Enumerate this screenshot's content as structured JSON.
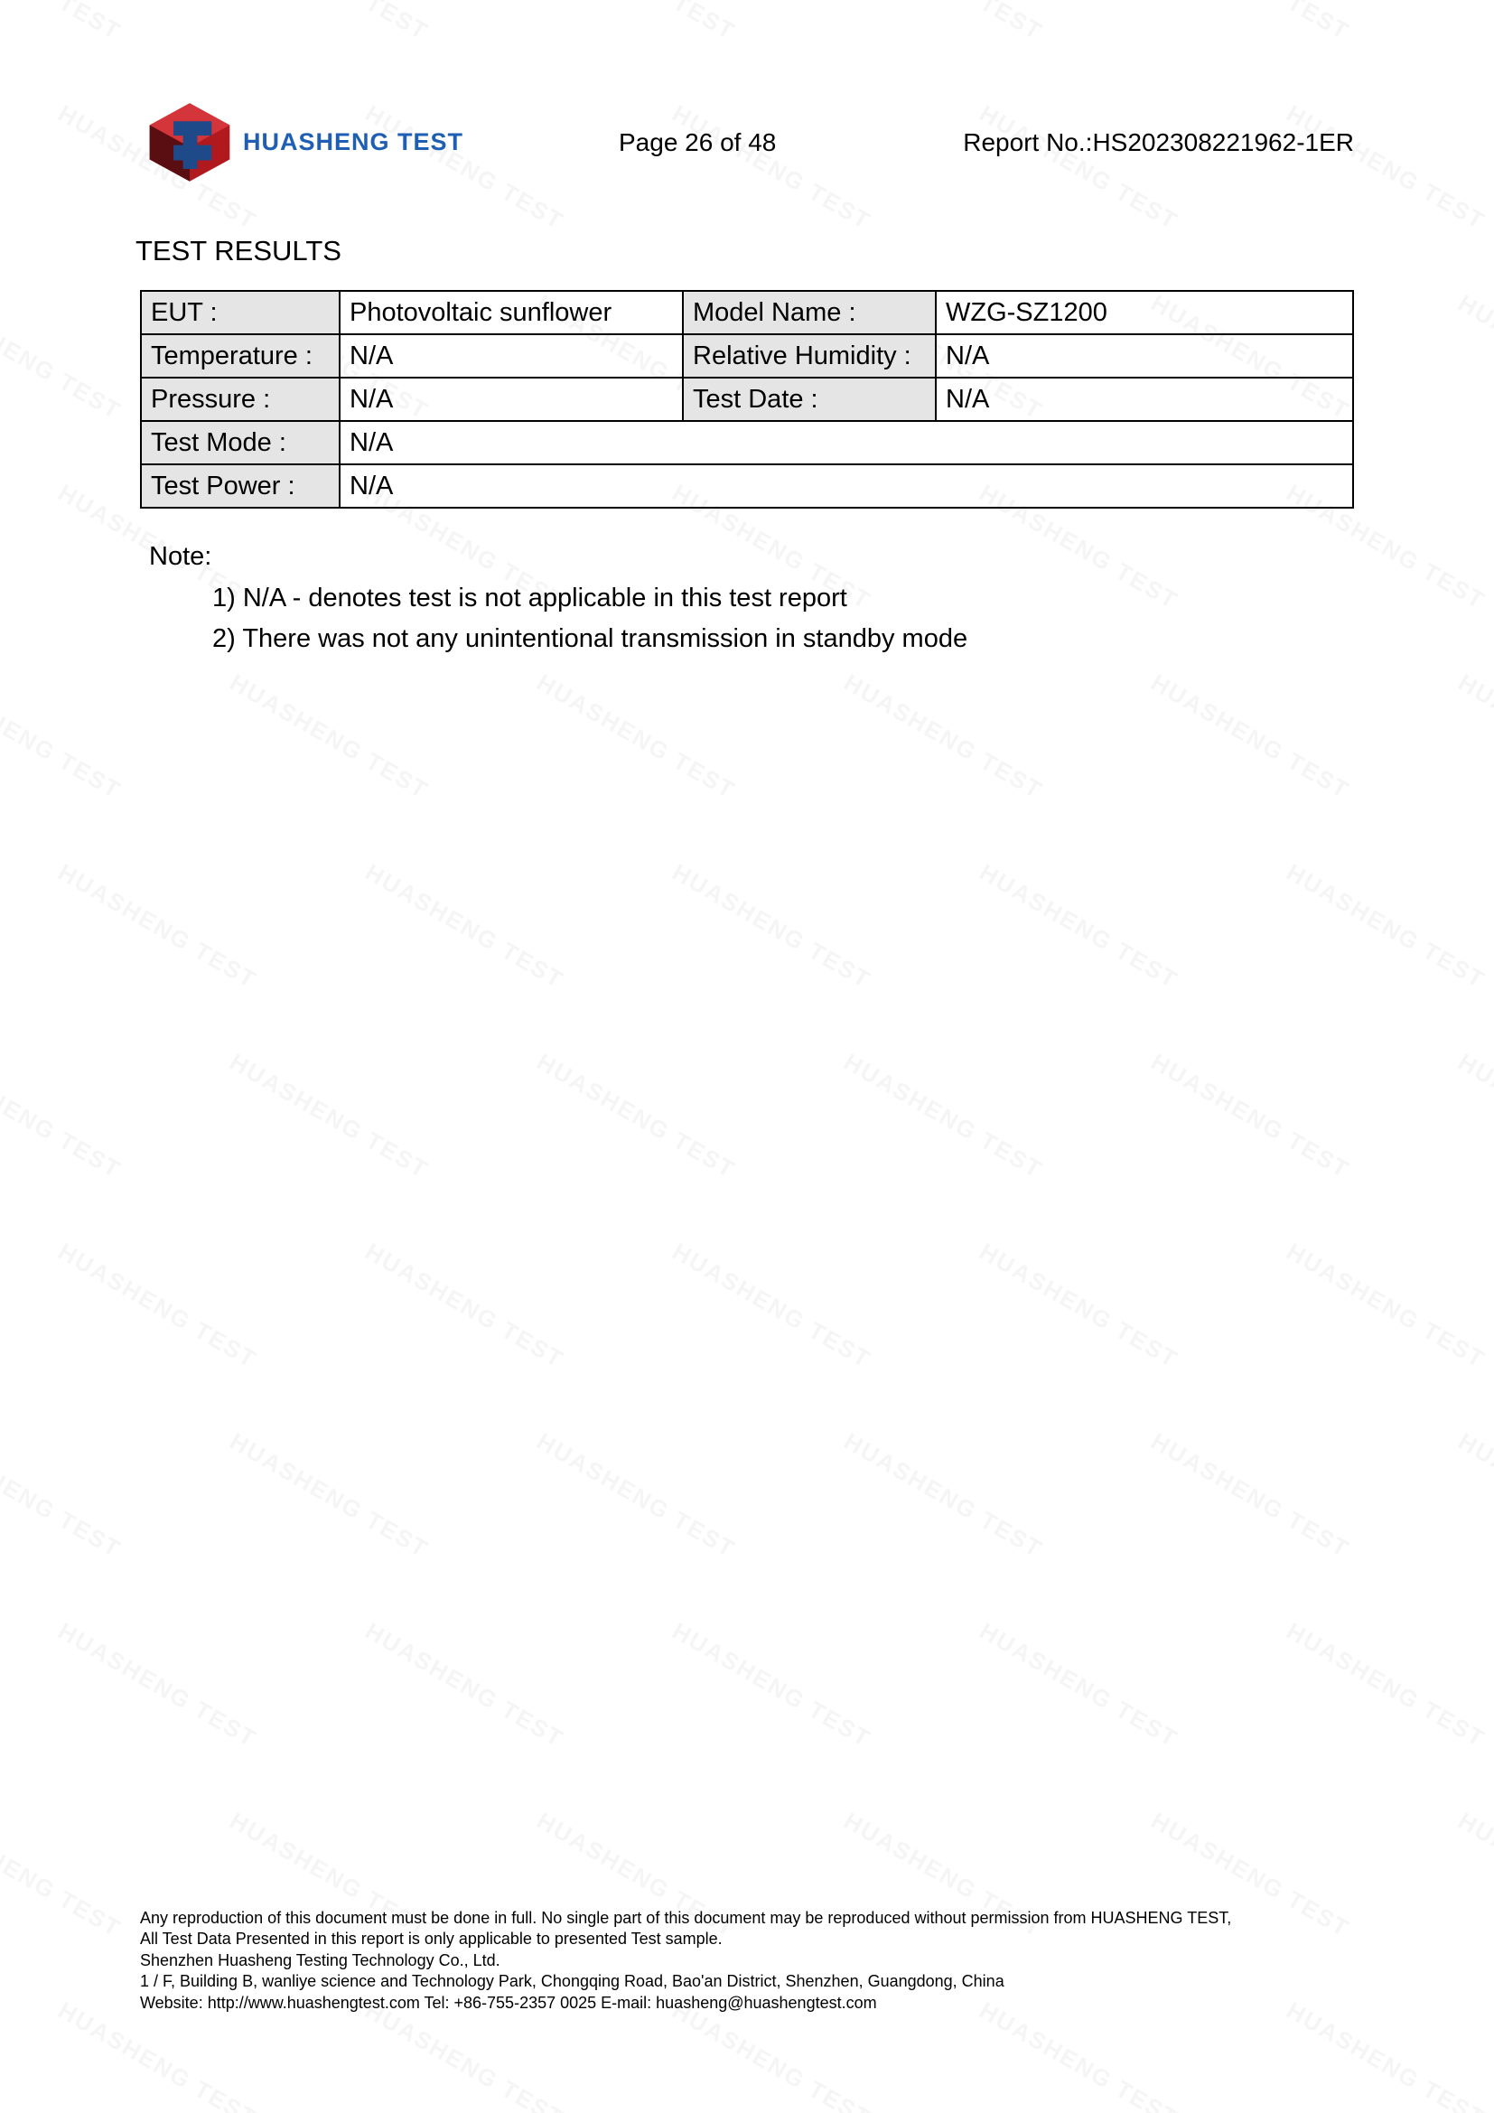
{
  "header": {
    "company_name": "HUASHENG TEST",
    "page_label": "Page 26 of 48",
    "report_no": "Report No.:HS202308221962-1ER",
    "logo_colors": {
      "cube_red": "#b01a1f",
      "cube_blue": "#1e4a8a",
      "cube_dark": "#5a0e12"
    }
  },
  "section_title": "TEST RESULTS",
  "table": {
    "rows": [
      {
        "label1": "EUT :",
        "value1": "Photovoltaic sunflower",
        "label2": "Model Name   :",
        "value2": "WZG-SZ1200"
      },
      {
        "label1": "Temperature :",
        "value1": "N/A",
        "label2": "Relative Humidity :",
        "value2": "N/A"
      },
      {
        "label1": "Pressure :",
        "value1": "N/A",
        "label2": "Test Date :",
        "value2": "N/A"
      },
      {
        "label1": "Test Mode    :",
        "value1": "N/A",
        "span": true
      },
      {
        "label1": "Test Power    :",
        "value1": "N/A",
        "span": true
      }
    ],
    "label_bg": "#e5e5e5",
    "border_color": "#000000",
    "font_size": 29
  },
  "notes": {
    "label": "Note:",
    "items": [
      "1) N/A - denotes test is not applicable in this test report",
      "2) There was not any unintentional transmission in standby mode"
    ]
  },
  "footer": {
    "line1": "Any reproduction of this document must be done in full. No single part of this document may be reproduced without permission from HUASHENG TEST,",
    "line2": "All Test Data Presented in this report is only applicable to presented Test sample.",
    "line3": "Shenzhen Huasheng Testing Technology Co., Ltd.",
    "line4": "1 / F, Building B, wanliye science and Technology Park, Chongqing Road, Bao'an District, Shenzhen, Guangdong, China",
    "line5": "Website: http://www.huashengtest.com        Tel: +86-755-2357 0025           E-mail: huasheng@huashengtest.com"
  },
  "watermark": {
    "text": "HUASHENG TEST"
  }
}
